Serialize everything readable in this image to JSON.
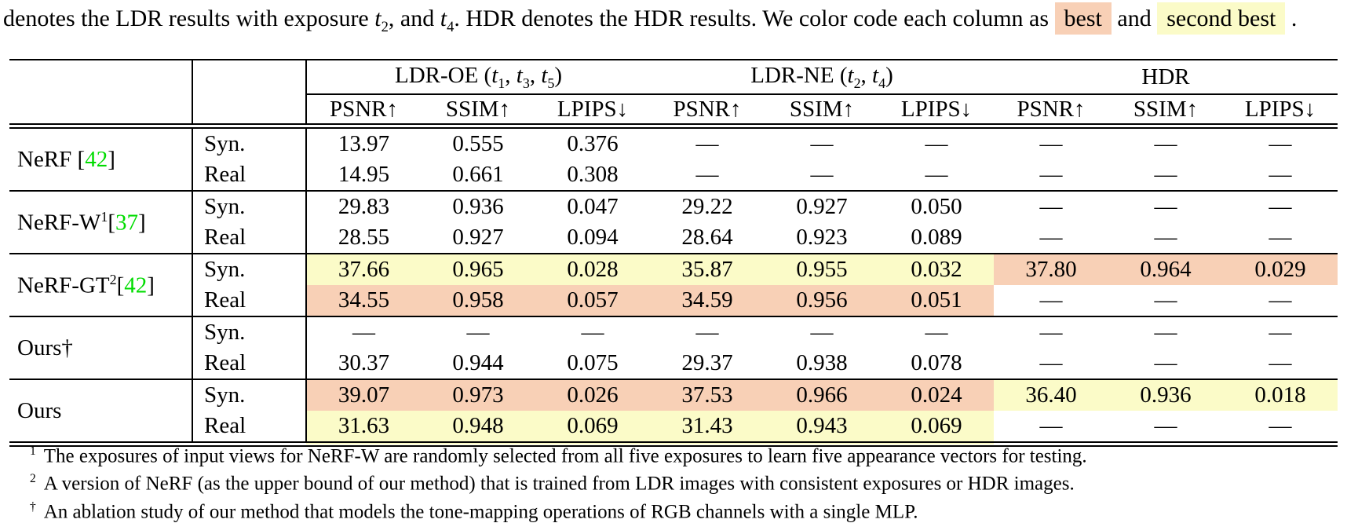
{
  "colors": {
    "best": "#f8d0b6",
    "second_best": "#fbfbc8",
    "citation_green": "#00dc00"
  },
  "caption": {
    "segments": [
      {
        "text": "denotes the LDR results with exposure "
      },
      {
        "italic": "t"
      },
      {
        "sub": "2"
      },
      {
        "text": ", and "
      },
      {
        "italic": "t"
      },
      {
        "sub": "4"
      },
      {
        "text": ". HDR denotes the HDR results. We color code each column as "
      },
      {
        "hl_best": "best"
      },
      {
        "text": " and "
      },
      {
        "hl_second": "second best"
      },
      {
        "text": " ."
      }
    ]
  },
  "table": {
    "column_groups": [
      {
        "id": "ldr-oe",
        "segments": [
          {
            "text": "LDR-OE ("
          },
          {
            "italic": "t"
          },
          {
            "sub": "1"
          },
          {
            "text": ", "
          },
          {
            "italic": "t"
          },
          {
            "sub": "3"
          },
          {
            "text": ", "
          },
          {
            "italic": "t"
          },
          {
            "sub": "5"
          },
          {
            "text": ")"
          }
        ]
      },
      {
        "id": "ldr-ne",
        "segments": [
          {
            "text": "LDR-NE ("
          },
          {
            "italic": "t"
          },
          {
            "sub": "2"
          },
          {
            "text": ", "
          },
          {
            "italic": "t"
          },
          {
            "sub": "4"
          },
          {
            "text": ")"
          }
        ]
      },
      {
        "id": "hdr",
        "segments": [
          {
            "text": "HDR"
          }
        ]
      }
    ],
    "metric_headers": [
      "PSNR↑",
      "SSIM↑",
      "LPIPS↓",
      "PSNR↑",
      "SSIM↑",
      "LPIPS↓",
      "PSNR↑",
      "SSIM↑",
      "LPIPS↓"
    ],
    "body": [
      {
        "method_id": "nerf",
        "method_segments": [
          {
            "text": "NeRF ["
          },
          {
            "green": "42"
          },
          {
            "text": "]"
          }
        ],
        "subrows": [
          {
            "setting": "Syn.",
            "values": [
              "13.97",
              "0.555",
              "0.376",
              "—",
              "—",
              "—",
              "—",
              "—",
              "—"
            ],
            "ldr_hl": "none",
            "hdr_hl": "none"
          },
          {
            "setting": "Real",
            "values": [
              "14.95",
              "0.661",
              "0.308",
              "—",
              "—",
              "—",
              "—",
              "—",
              "—"
            ],
            "ldr_hl": "none",
            "hdr_hl": "none"
          }
        ]
      },
      {
        "method_id": "nerf-w",
        "method_segments": [
          {
            "text": "NeRF-W"
          },
          {
            "sup": "1"
          },
          {
            "text": "["
          },
          {
            "green": "37"
          },
          {
            "text": "]"
          }
        ],
        "subrows": [
          {
            "setting": "Syn.",
            "values": [
              "29.83",
              "0.936",
              "0.047",
              "29.22",
              "0.927",
              "0.050",
              "—",
              "—",
              "—"
            ],
            "ldr_hl": "none",
            "hdr_hl": "none"
          },
          {
            "setting": "Real",
            "values": [
              "28.55",
              "0.927",
              "0.094",
              "28.64",
              "0.923",
              "0.089",
              "—",
              "—",
              "—"
            ],
            "ldr_hl": "none",
            "hdr_hl": "none"
          }
        ]
      },
      {
        "method_id": "nerf-gt",
        "method_segments": [
          {
            "text": "NeRF-GT"
          },
          {
            "sup": "2"
          },
          {
            "text": "["
          },
          {
            "green": "42"
          },
          {
            "text": "]"
          }
        ],
        "subrows": [
          {
            "setting": "Syn.",
            "values": [
              "37.66",
              "0.965",
              "0.028",
              "35.87",
              "0.955",
              "0.032",
              "37.80",
              "0.964",
              "0.029"
            ],
            "ldr_hl": "yellow",
            "hdr_hl": "orange"
          },
          {
            "setting": "Real",
            "values": [
              "34.55",
              "0.958",
              "0.057",
              "34.59",
              "0.956",
              "0.051",
              "—",
              "—",
              "—"
            ],
            "ldr_hl": "orange",
            "hdr_hl": "none"
          }
        ]
      },
      {
        "method_id": "ours-dagger",
        "method_segments": [
          {
            "text": "Ours†"
          }
        ],
        "subrows": [
          {
            "setting": "Syn.",
            "values": [
              "—",
              "—",
              "—",
              "—",
              "—",
              "—",
              "—",
              "—",
              "—"
            ],
            "ldr_hl": "none",
            "hdr_hl": "none"
          },
          {
            "setting": "Real",
            "values": [
              "30.37",
              "0.944",
              "0.075",
              "29.37",
              "0.938",
              "0.078",
              "—",
              "—",
              "—"
            ],
            "ldr_hl": "none",
            "hdr_hl": "none"
          }
        ]
      },
      {
        "method_id": "ours",
        "method_segments": [
          {
            "text": "Ours"
          }
        ],
        "subrows": [
          {
            "setting": "Syn.",
            "values": [
              "39.07",
              "0.973",
              "0.026",
              "37.53",
              "0.966",
              "0.024",
              "36.40",
              "0.936",
              "0.018"
            ],
            "ldr_hl": "orange",
            "hdr_hl": "yellow"
          },
          {
            "setting": "Real",
            "values": [
              "31.63",
              "0.948",
              "0.069",
              "31.43",
              "0.943",
              "0.069",
              "—",
              "—",
              "—"
            ],
            "ldr_hl": "yellow",
            "hdr_hl": "none"
          }
        ]
      }
    ]
  },
  "footnotes": [
    {
      "marker": "1",
      "text": "The exposures of input views for NeRF-W are randomly selected from all five exposures to learn five appearance vectors for testing."
    },
    {
      "marker": "2",
      "text": "A version of NeRF (as the upper bound of our method) that is trained from LDR images with consistent exposures or HDR images."
    },
    {
      "marker": "†",
      "text": "An ablation study of our method that models the tone-mapping operations of RGB channels with a single MLP."
    }
  ]
}
